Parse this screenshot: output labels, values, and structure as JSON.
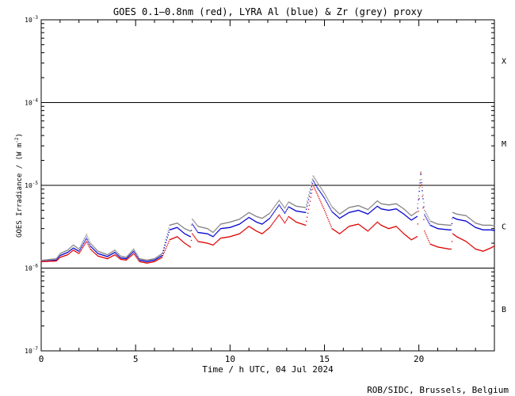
{
  "chart_data": {
    "type": "line",
    "title": "GOES 0.1—0.8nm (red), LYRA Al (blue) & Zr (grey) proxy",
    "xlabel": "Time / h UTC, 04 Jul 2024",
    "ylabel_main": "GOES Irradiance / (W m",
    "ylabel_sup": "-2",
    "ylabel_end": ")",
    "credit": "ROB/SIDC, Brussels, Belgium",
    "xlim": [
      0,
      24
    ],
    "ylim": [
      1e-07,
      0.001
    ],
    "yscale": "log",
    "x_ticks": [
      {
        "value": 0,
        "label": "0"
      },
      {
        "value": 5,
        "label": "5"
      },
      {
        "value": 10,
        "label": "10"
      },
      {
        "value": 15,
        "label": "15"
      },
      {
        "value": 20,
        "label": "20"
      }
    ],
    "y_ticks": [
      {
        "value": 1e-07,
        "base": "10",
        "exp": "-7"
      },
      {
        "value": 1e-06,
        "base": "10",
        "exp": "-6"
      },
      {
        "value": 1e-05,
        "base": "10",
        "exp": "-5"
      },
      {
        "value": 0.0001,
        "base": "10",
        "exp": "-4"
      },
      {
        "value": 0.001,
        "base": "10",
        "exp": "-3"
      }
    ],
    "flare_class_lines": [
      1e-06,
      1e-05,
      0.0001
    ],
    "flare_classes": [
      {
        "label": "X",
        "value": 0.00032
      },
      {
        "label": "M",
        "value": 3.2e-05
      },
      {
        "label": "C",
        "value": 3.2e-06
      },
      {
        "label": "B",
        "value": 3.2e-07
      }
    ],
    "series": [
      {
        "color": "#808080",
        "x": [
          0,
          0.8,
          1.0,
          1.4,
          1.7,
          2.0,
          2.4,
          2.6,
          3.0,
          3.5,
          3.9,
          4.2,
          4.5,
          4.9,
          5.2,
          5.6,
          6.0,
          6.4,
          6.8,
          7.2,
          7.6,
          7.9,
          8.0,
          8.3,
          8.8,
          9.1,
          9.5,
          10.0,
          10.5,
          11.0,
          11.4,
          11.7,
          12.1,
          12.6,
          12.9,
          13.1,
          13.5,
          14.0,
          14.4,
          14.6,
          15.0,
          15.4,
          15.8,
          16.3,
          16.8,
          17.3,
          17.8,
          18.0,
          18.4,
          18.8,
          19.2,
          19.6,
          19.9,
          20.1,
          20.3,
          20.6,
          21.0,
          21.6,
          21.7,
          21.8,
          22.0,
          22.5,
          23.0,
          23.4,
          23.8,
          24.0
        ],
        "y": [
          1.24e-06,
          1.3e-06,
          1.5e-06,
          1.65e-06,
          1.9e-06,
          1.7e-06,
          2.55e-06,
          2e-06,
          1.6e-06,
          1.45e-06,
          1.65e-06,
          1.4e-06,
          1.35e-06,
          1.7e-06,
          1.3e-06,
          1.25e-06,
          1.3e-06,
          1.5e-06,
          3.3e-06,
          3.5e-06,
          3e-06,
          2.8e-06,
          3.9e-06,
          3.2e-06,
          3e-06,
          2.7e-06,
          3.4e-06,
          3.6e-06,
          3.9e-06,
          4.7e-06,
          4.2e-06,
          4e-06,
          4.6e-06,
          6.6e-06,
          5.3e-06,
          6.3e-06,
          5.6e-06,
          5.4e-06,
          1.3e-05,
          1.1e-05,
          8e-06,
          5.5e-06,
          4.5e-06,
          5.4e-06,
          5.7e-06,
          5.1e-06,
          6.5e-06,
          6e-06,
          5.8e-06,
          6e-06,
          5.2e-06,
          4.3e-06,
          4.8e-06,
          1.45e-05,
          5e-06,
          3.7e-06,
          3.4e-06,
          3.3e-06,
          3.3e-06,
          4.7e-06,
          4.5e-06,
          4.3e-06,
          3.5e-06,
          3.3e-06,
          3.3e-06,
          3.25e-06
        ]
      },
      {
        "color": "#0000cc",
        "x": [
          0,
          0.8,
          1.0,
          1.4,
          1.7,
          2.0,
          2.4,
          2.6,
          3.0,
          3.5,
          3.9,
          4.2,
          4.5,
          4.9,
          5.2,
          5.6,
          6.0,
          6.4,
          6.8,
          7.2,
          7.6,
          7.9,
          8.0,
          8.3,
          8.8,
          9.1,
          9.5,
          10.0,
          10.5,
          11.0,
          11.4,
          11.7,
          12.1,
          12.6,
          12.9,
          13.1,
          13.5,
          14.0,
          14.4,
          14.6,
          15.0,
          15.4,
          15.8,
          16.3,
          16.8,
          17.3,
          17.8,
          18.0,
          18.4,
          18.8,
          19.2,
          19.6,
          19.9,
          20.1,
          20.3,
          20.6,
          21.0,
          21.6,
          21.7,
          21.8,
          22.0,
          22.5,
          23.0,
          23.4,
          23.8,
          24.0
        ],
        "y": [
          1.2e-06,
          1.25e-06,
          1.42e-06,
          1.55e-06,
          1.75e-06,
          1.6e-06,
          2.3e-06,
          1.85e-06,
          1.5e-06,
          1.38e-06,
          1.55e-06,
          1.33e-06,
          1.3e-06,
          1.6e-06,
          1.25e-06,
          1.2e-06,
          1.25e-06,
          1.42e-06,
          2.9e-06,
          3.1e-06,
          2.6e-06,
          2.4e-06,
          3.4e-06,
          2.7e-06,
          2.6e-06,
          2.4e-06,
          3e-06,
          3.1e-06,
          3.4e-06,
          4.1e-06,
          3.6e-06,
          3.4e-06,
          4e-06,
          5.8e-06,
          4.6e-06,
          5.5e-06,
          4.9e-06,
          4.7e-06,
          1.15e-05,
          9.5e-06,
          7e-06,
          4.8e-06,
          4e-06,
          4.7e-06,
          5e-06,
          4.5e-06,
          5.6e-06,
          5.2e-06,
          5e-06,
          5.2e-06,
          4.5e-06,
          3.8e-06,
          4.2e-06,
          1.35e-05,
          4.4e-06,
          3.3e-06,
          3e-06,
          2.9e-06,
          2.9e-06,
          4.1e-06,
          3.9e-06,
          3.7e-06,
          3.1e-06,
          2.9e-06,
          2.9e-06,
          2.85e-06
        ]
      },
      {
        "color": "#dd0000",
        "x": [
          0,
          0.8,
          1.0,
          1.4,
          1.7,
          2.0,
          2.4,
          2.6,
          3.0,
          3.5,
          3.9,
          4.2,
          4.5,
          4.9,
          5.2,
          5.6,
          6.0,
          6.4,
          6.8,
          7.2,
          7.6,
          7.9,
          8.0,
          8.3,
          8.8,
          9.1,
          9.5,
          10.0,
          10.5,
          11.0,
          11.4,
          11.7,
          12.1,
          12.6,
          12.9,
          13.1,
          13.5,
          14.0,
          14.4,
          14.6,
          15.0,
          15.4,
          15.8,
          16.3,
          16.8,
          17.3,
          17.8,
          18.0,
          18.4,
          18.8,
          19.2,
          19.6,
          19.9,
          20.1,
          20.3,
          20.6,
          21.0,
          21.6,
          21.7,
          21.8,
          22.0,
          22.5,
          23.0,
          23.4,
          23.8,
          24.0
        ],
        "y": [
          1.2e-06,
          1.22e-06,
          1.35e-06,
          1.45e-06,
          1.65e-06,
          1.5e-06,
          2.1e-06,
          1.7e-06,
          1.4e-06,
          1.3e-06,
          1.45e-06,
          1.28e-06,
          1.25e-06,
          1.5e-06,
          1.2e-06,
          1.15e-06,
          1.2e-06,
          1.35e-06,
          2.2e-06,
          2.4e-06,
          2e-06,
          1.8e-06,
          2.6e-06,
          2.1e-06,
          2e-06,
          1.9e-06,
          2.3e-06,
          2.4e-06,
          2.6e-06,
          3.2e-06,
          2.8e-06,
          2.6e-06,
          3.1e-06,
          4.4e-06,
          3.5e-06,
          4.2e-06,
          3.6e-06,
          3.3e-06,
          1e-05,
          8e-06,
          5e-06,
          3e-06,
          2.6e-06,
          3.2e-06,
          3.4e-06,
          2.8e-06,
          3.6e-06,
          3.3e-06,
          3e-06,
          3.2e-06,
          2.6e-06,
          2.2e-06,
          2.4e-06,
          1.4e-05,
          2.8e-06,
          1.95e-06,
          1.8e-06,
          1.7e-06,
          1.7e-06,
          2.6e-06,
          2.4e-06,
          2.1e-06,
          1.7e-06,
          1.6e-06,
          1.75e-06,
          1.85e-06
        ]
      }
    ]
  }
}
